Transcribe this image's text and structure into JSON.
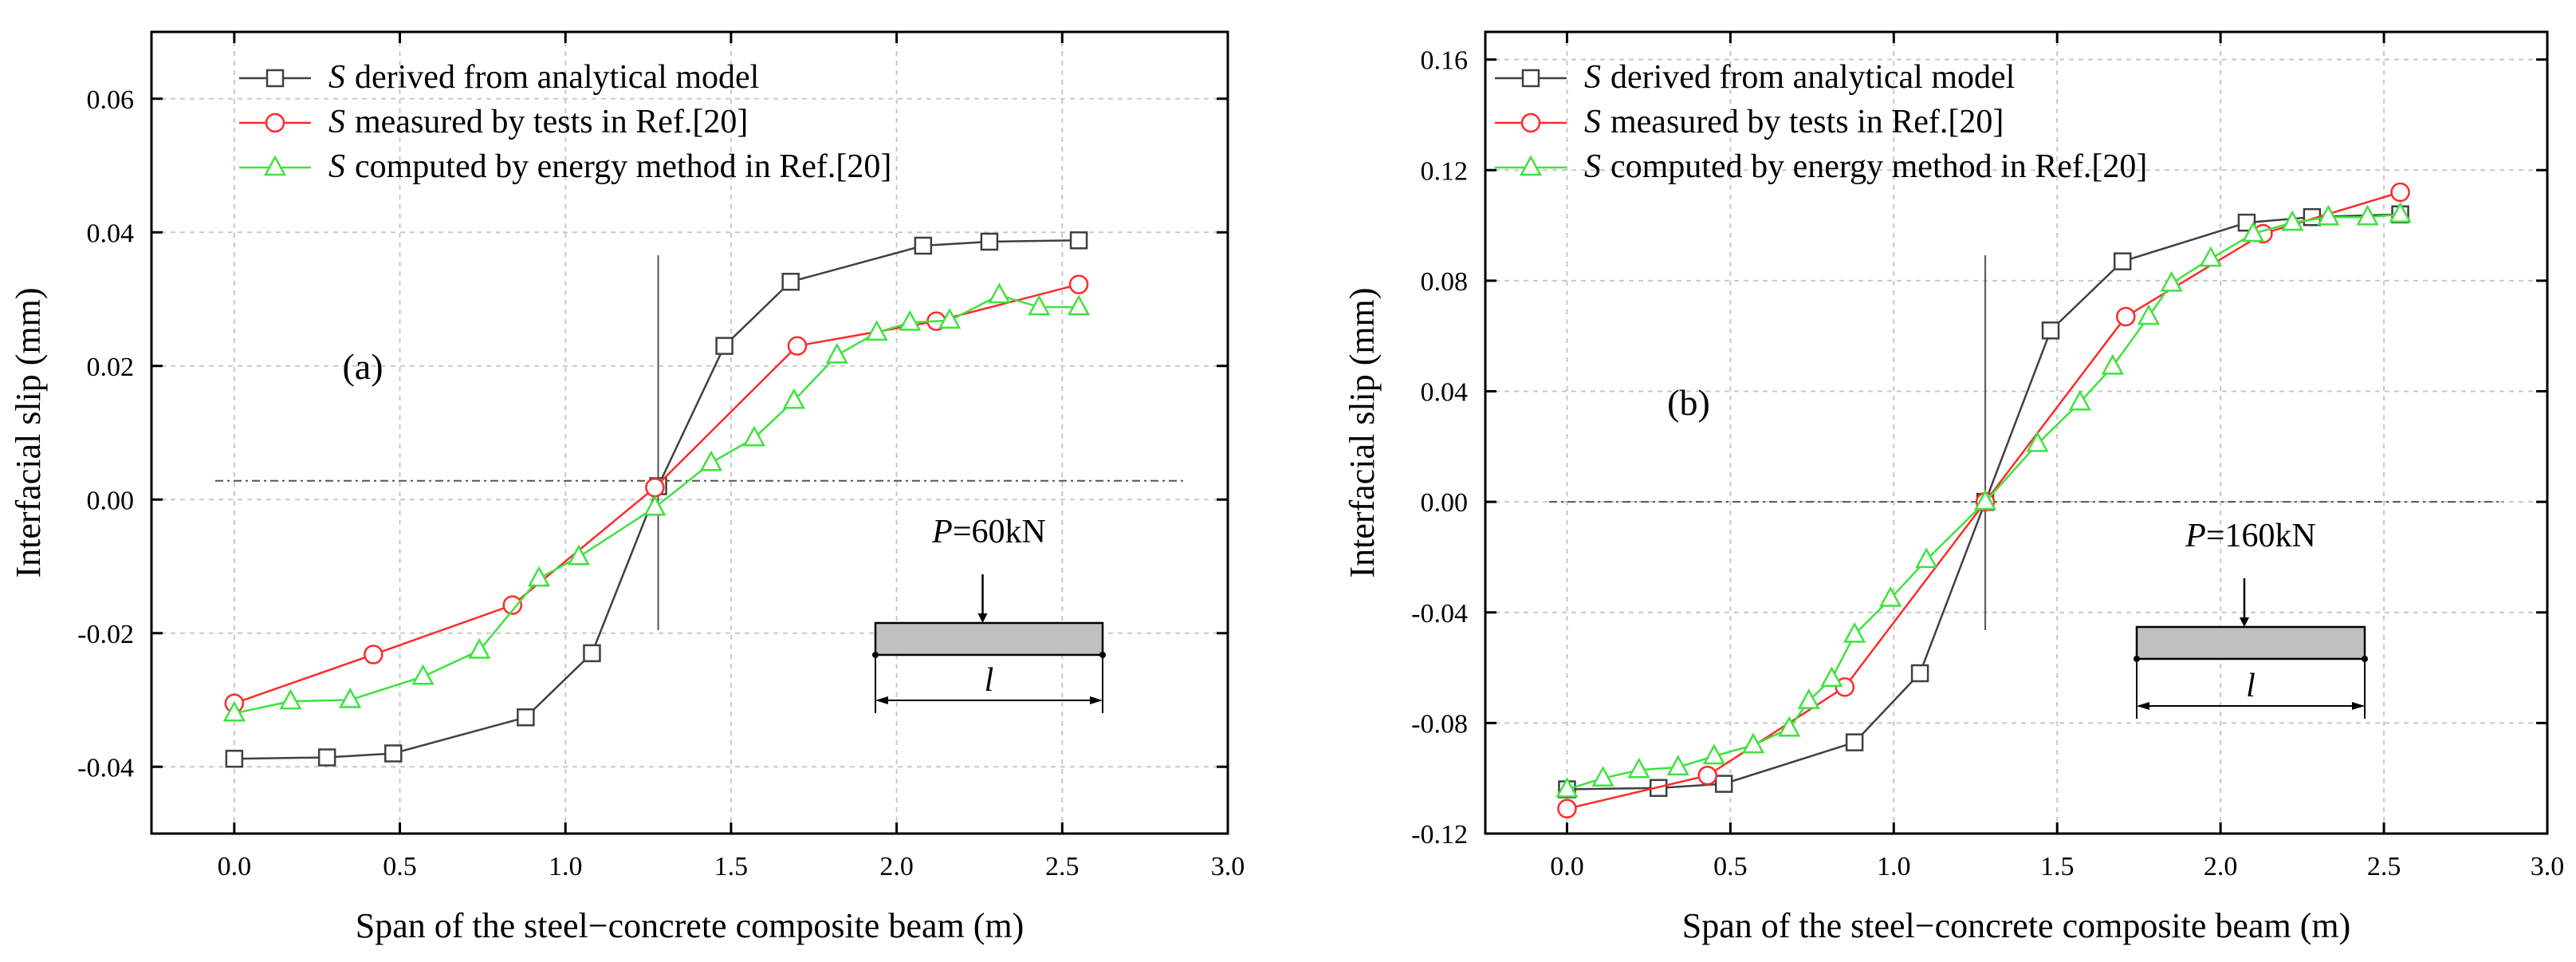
{
  "chart_data": [
    {
      "type": "line",
      "panel_label": "(a)",
      "xlabel": "Span of the steel−concrete composite beam (m)",
      "ylabel": "Interfacial slip (mm)",
      "xlim": [
        -0.25,
        3.0
      ],
      "ylim": [
        -0.05,
        0.07
      ],
      "xticks": [
        "0.0",
        "0.5",
        "1.0",
        "1.5",
        "2.0",
        "2.5",
        "3.0"
      ],
      "yticks": [
        "-0.04",
        "-0.02",
        "0.00",
        "0.02",
        "0.04",
        "0.06"
      ],
      "grid": true,
      "legend_position": "top-left",
      "series": [
        {
          "name_symbol": "S",
          "name": "derived from analytical model",
          "marker": "square",
          "color": "#404040",
          "x": [
            0.0,
            0.28,
            0.48,
            0.88,
            1.08,
            1.28,
            1.48,
            1.68,
            2.08,
            2.28,
            2.55
          ],
          "y": [
            -0.0388,
            -0.0386,
            -0.038,
            -0.0326,
            -0.023,
            0.002,
            0.023,
            0.0326,
            0.038,
            0.0386,
            0.0388
          ]
        },
        {
          "name_symbol": "S",
          "name": "measured by tests in Ref.[20]",
          "marker": "circle",
          "color": "#ff2a2a",
          "x": [
            0.0,
            0.42,
            0.84,
            1.27,
            1.7,
            2.12,
            2.55
          ],
          "y": [
            -0.0305,
            -0.0232,
            -0.0158,
            0.0018,
            0.023,
            0.0267,
            0.0322
          ]
        },
        {
          "name_symbol": "S",
          "name": "computed by energy method in Ref.[20]",
          "marker": "triangle",
          "color": "#3fe23f",
          "x": [
            0.0,
            0.17,
            0.35,
            0.57,
            0.74,
            0.92,
            1.04,
            1.27,
            1.44,
            1.57,
            1.69,
            1.82,
            1.94,
            2.04,
            2.16,
            2.31,
            2.43,
            2.55
          ],
          "y": [
            -0.032,
            -0.0302,
            -0.03,
            -0.0265,
            -0.0226,
            -0.0118,
            -0.0086,
            -0.0012,
            0.0055,
            0.0092,
            0.0148,
            0.0216,
            0.025,
            0.0265,
            0.0268,
            0.0306,
            0.0288,
            0.0288
          ]
        }
      ],
      "reference_lines": {
        "vertical_x": 1.28,
        "horizontal_y": 0.0028
      },
      "annotation": {
        "load_symbol": "P",
        "load_value": "=60kN",
        "span_symbol": "l"
      }
    },
    {
      "type": "line",
      "panel_label": "(b)",
      "xlabel": "Span of the steel−concrete composite beam (m)",
      "ylabel": "Interfacial slip (mm)",
      "xlim": [
        -0.25,
        3.0
      ],
      "ylim": [
        -0.12,
        0.17
      ],
      "xticks": [
        "0.0",
        "0.5",
        "1.0",
        "1.5",
        "2.0",
        "2.5",
        "3.0"
      ],
      "yticks": [
        "-0.12",
        "-0.08",
        "-0.04",
        "0.00",
        "0.04",
        "0.08",
        "0.12",
        "0.16"
      ],
      "grid": true,
      "legend_position": "top-left",
      "series": [
        {
          "name_symbol": "S",
          "name": "derived from analytical model",
          "marker": "square",
          "color": "#404040",
          "x": [
            0.0,
            0.28,
            0.48,
            0.88,
            1.08,
            1.28,
            1.48,
            1.7,
            2.08,
            2.28,
            2.55
          ],
          "y": [
            -0.104,
            -0.1035,
            -0.102,
            -0.087,
            -0.062,
            0.0,
            0.062,
            0.087,
            0.101,
            0.103,
            0.104
          ]
        },
        {
          "name_symbol": "S",
          "name": "measured by tests in Ref.[20]",
          "marker": "circle",
          "color": "#ff2a2a",
          "x": [
            0.0,
            0.43,
            0.85,
            1.28,
            1.71,
            2.13,
            2.55
          ],
          "y": [
            -0.111,
            -0.099,
            -0.067,
            0.0,
            0.067,
            0.097,
            0.112
          ]
        },
        {
          "name_symbol": "S",
          "name": "computed by energy method in Ref.[20]",
          "marker": "triangle",
          "color": "#3fe23f",
          "x": [
            0.0,
            0.11,
            0.22,
            0.34,
            0.45,
            0.57,
            0.68,
            0.74,
            0.81,
            0.88,
            0.99,
            1.1,
            1.28,
            1.44,
            1.57,
            1.67,
            1.78,
            1.85,
            1.97,
            2.1,
            2.22,
            2.33,
            2.45,
            2.55
          ],
          "y": [
            -0.104,
            -0.1,
            -0.097,
            -0.096,
            -0.092,
            -0.088,
            -0.082,
            -0.072,
            -0.064,
            -0.048,
            -0.035,
            -0.021,
            0.0,
            0.021,
            0.036,
            0.049,
            0.067,
            0.079,
            0.088,
            0.097,
            0.101,
            0.103,
            0.103,
            0.104
          ]
        }
      ],
      "reference_lines": {
        "vertical_x": 1.28,
        "horizontal_y": 0.0
      },
      "annotation": {
        "load_symbol": "P",
        "load_value": "=160kN",
        "span_symbol": "l"
      }
    }
  ]
}
